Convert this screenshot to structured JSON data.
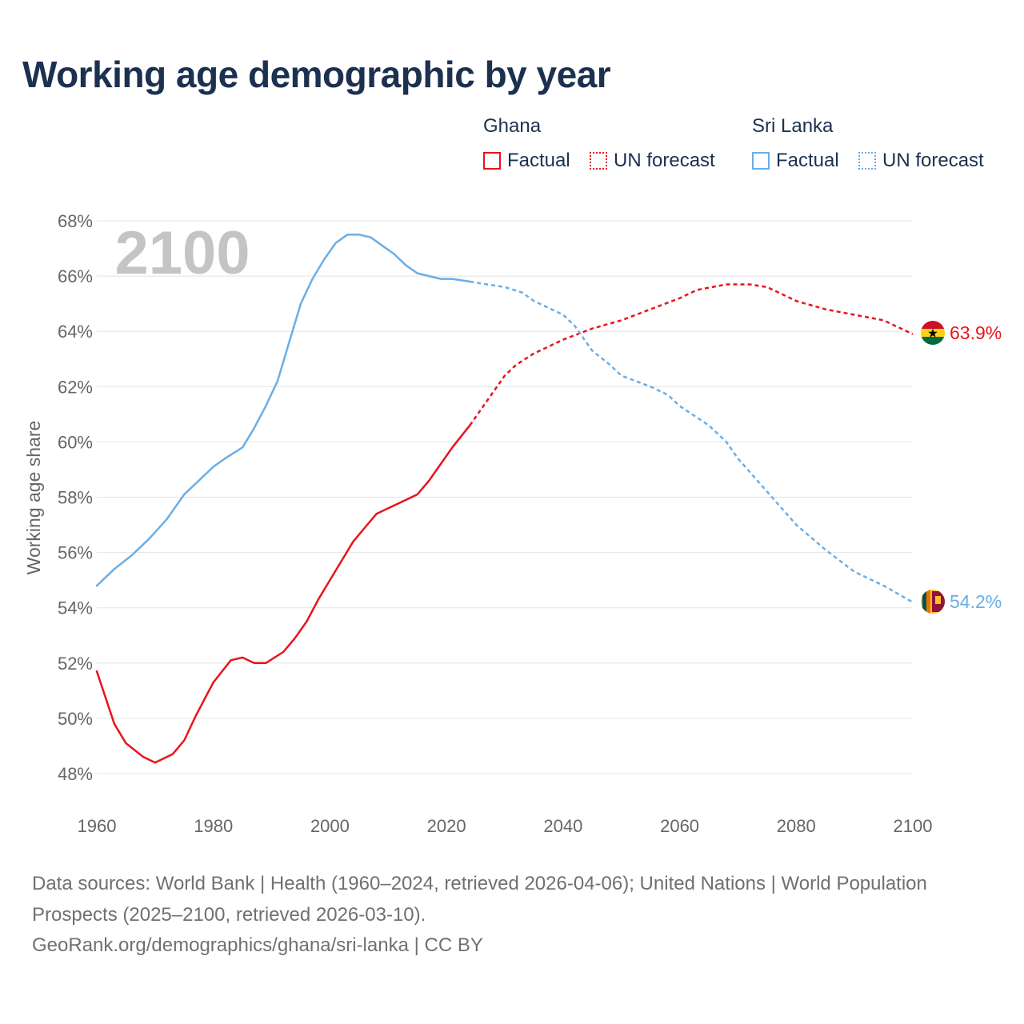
{
  "title": "Working age demographic by year",
  "legend": {
    "groups": [
      {
        "country": "Ghana",
        "color": "#e8141c",
        "factual_label": "Factual",
        "forecast_label": "UN forecast"
      },
      {
        "country": "Sri Lanka",
        "color": "#6aaee6",
        "factual_label": "Factual",
        "forecast_label": "UN forecast"
      }
    ]
  },
  "chart_data": {
    "type": "line",
    "title": "Working age demographic by year",
    "ylabel": "Working age share",
    "xlabel": "",
    "xlim": [
      1960,
      2100
    ],
    "ylim": [
      48,
      68
    ],
    "x_ticks": [
      "1960",
      "1980",
      "2000",
      "2020",
      "2040",
      "2060",
      "2080",
      "2100"
    ],
    "y_ticks": [
      "48%",
      "50%",
      "52%",
      "54%",
      "56%",
      "58%",
      "60%",
      "62%",
      "64%",
      "66%",
      "68%"
    ],
    "year_overlay": "2100",
    "grid": true,
    "series": [
      {
        "name": "Ghana",
        "color": "#e8141c",
        "end_label": "63.9%",
        "factual": {
          "x": [
            1960,
            1963,
            1965,
            1968,
            1970,
            1973,
            1975,
            1977,
            1980,
            1983,
            1985,
            1987,
            1989,
            1992,
            1994,
            1996,
            1998,
            2000,
            2002,
            2004,
            2006,
            2008,
            2010,
            2013,
            2015,
            2017,
            2019,
            2021,
            2024
          ],
          "y": [
            51.7,
            49.8,
            49.1,
            48.6,
            48.4,
            48.7,
            49.2,
            50.1,
            51.3,
            52.1,
            52.2,
            52.0,
            52.0,
            52.4,
            52.9,
            53.5,
            54.3,
            55.0,
            55.7,
            56.4,
            56.9,
            57.4,
            57.6,
            57.9,
            58.1,
            58.6,
            59.2,
            59.8,
            60.6
          ]
        },
        "forecast": {
          "x": [
            2024,
            2026,
            2028,
            2030,
            2032,
            2035,
            2038,
            2040,
            2045,
            2050,
            2055,
            2060,
            2063,
            2068,
            2072,
            2075,
            2080,
            2085,
            2090,
            2095,
            2100
          ],
          "y": [
            60.6,
            61.2,
            61.8,
            62.4,
            62.8,
            63.2,
            63.5,
            63.7,
            64.1,
            64.4,
            64.8,
            65.2,
            65.5,
            65.7,
            65.7,
            65.6,
            65.1,
            64.8,
            64.6,
            64.4,
            63.9
          ]
        }
      },
      {
        "name": "Sri Lanka",
        "color": "#6aaee6",
        "end_label": "54.2%",
        "factual": {
          "x": [
            1960,
            1963,
            1966,
            1969,
            1972,
            1975,
            1978,
            1980,
            1982,
            1985,
            1987,
            1989,
            1991,
            1993,
            1995,
            1997,
            1999,
            2001,
            2003,
            2005,
            2007,
            2009,
            2011,
            2013,
            2015,
            2017,
            2019,
            2021,
            2024
          ],
          "y": [
            54.8,
            55.4,
            55.9,
            56.5,
            57.2,
            58.1,
            58.7,
            59.1,
            59.4,
            59.8,
            60.5,
            61.3,
            62.2,
            63.6,
            65.0,
            65.9,
            66.6,
            67.2,
            67.5,
            67.5,
            67.4,
            67.1,
            66.8,
            66.4,
            66.1,
            66.0,
            65.9,
            65.9,
            65.8
          ]
        },
        "forecast": {
          "x": [
            2024,
            2027,
            2030,
            2033,
            2035,
            2038,
            2040,
            2042,
            2045,
            2048,
            2050,
            2055,
            2058,
            2060,
            2065,
            2068,
            2070,
            2075,
            2080,
            2085,
            2090,
            2095,
            2100
          ],
          "y": [
            65.8,
            65.7,
            65.6,
            65.4,
            65.1,
            64.8,
            64.6,
            64.2,
            63.3,
            62.8,
            62.4,
            62.0,
            61.7,
            61.3,
            60.6,
            60.0,
            59.4,
            58.2,
            57.0,
            56.1,
            55.3,
            54.8,
            54.2
          ]
        }
      }
    ]
  },
  "footer": {
    "source_text": "Data sources: World Bank | Health (1960–2024, retrieved 2026-04-06); United Nations | World Population Prospects (2025–2100, retrieved 2026-03-10).",
    "link_text": "GeoRank.org/demographics/ghana/sri-lanka | CC BY"
  }
}
